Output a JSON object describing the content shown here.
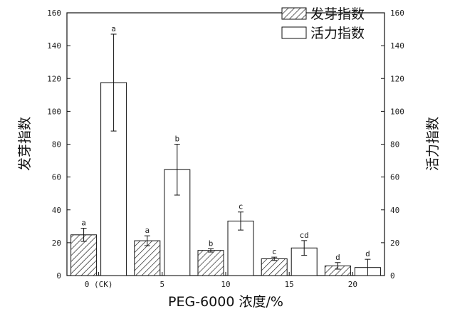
{
  "chart_data": {
    "type": "bar",
    "categories": [
      "0 (CK)",
      "5",
      "10",
      "15",
      "20"
    ],
    "series": [
      {
        "name": "发芽指数",
        "values": [
          24.8,
          21.2,
          15.3,
          10.2,
          5.9
        ],
        "errors": [
          4.0,
          3.0,
          1.0,
          1.0,
          2.0
        ],
        "labels": [
          "a",
          "a",
          "b",
          "c",
          "d"
        ],
        "fill": "hatch",
        "axis": "left"
      },
      {
        "name": "活力指数",
        "values": [
          117.5,
          64.5,
          33.2,
          16.8,
          4.9
        ],
        "errors": [
          29.5,
          15.5,
          5.5,
          4.5,
          5.0
        ],
        "labels": [
          "a",
          "b",
          "c",
          "cd",
          "d"
        ],
        "fill": "white",
        "axis": "right"
      }
    ],
    "xlabel": "PEG-6000 浓度/%",
    "ylabel_left": "发芽指数",
    "ylabel_right": "活力指数",
    "ylim": [
      0,
      160
    ],
    "yticks": [
      0,
      20,
      40,
      60,
      80,
      100,
      120,
      140,
      160
    ],
    "legend_position": "top-right",
    "grid": false
  }
}
